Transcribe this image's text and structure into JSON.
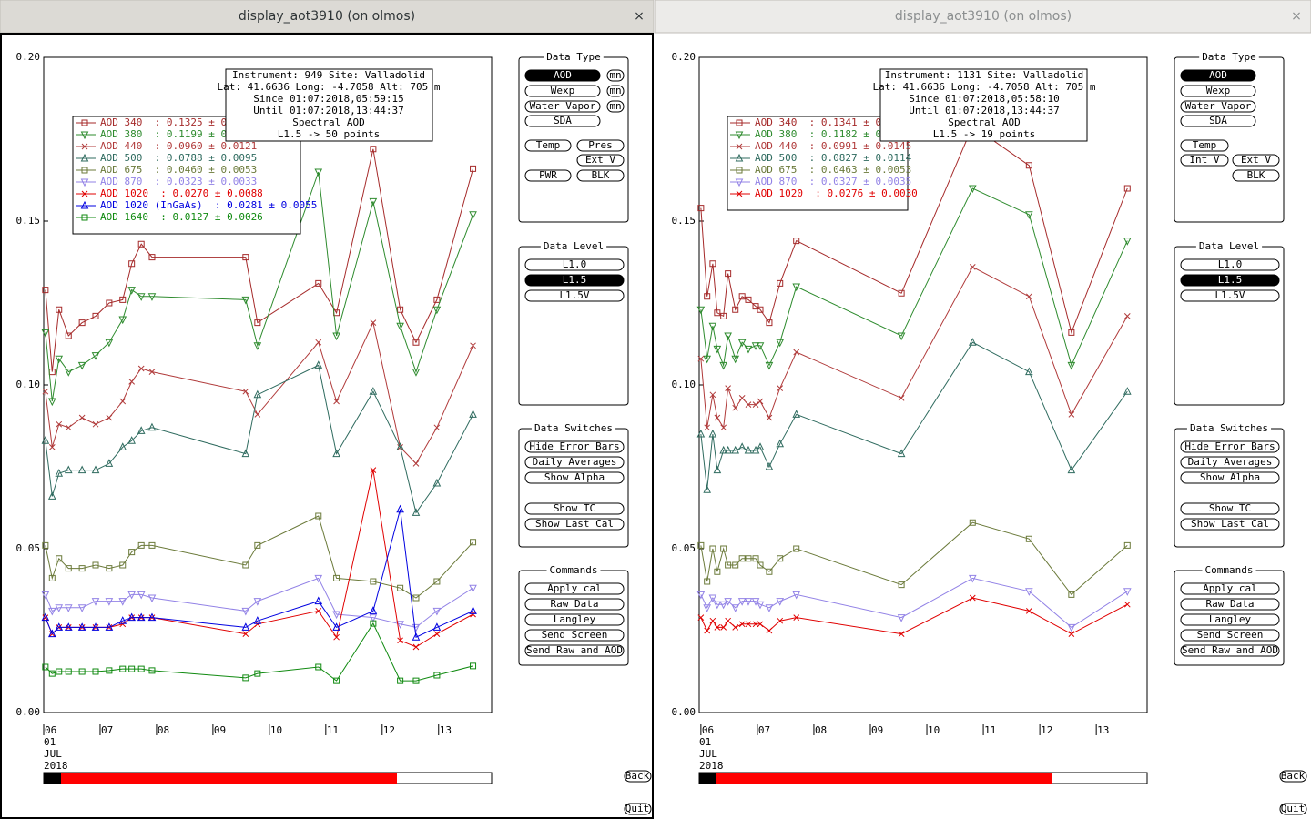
{
  "windows": [
    {
      "title": "display_aot3910 (on olmos)",
      "close": "×",
      "chart": {
        "type": "line",
        "x": [
          6.03,
          6.15,
          6.27,
          6.44,
          6.68,
          6.92,
          7.16,
          7.4,
          7.56,
          7.73,
          7.92,
          9.58,
          9.79,
          10.87,
          11.19,
          11.84,
          12.32,
          12.6,
          12.97,
          13.61
        ],
        "xlim": [
          6,
          13.94
        ],
        "xticks": [
          {
            "value": 6,
            "label": "06"
          },
          {
            "value": 7,
            "label": "07"
          },
          {
            "value": 8,
            "label": "08"
          },
          {
            "value": 9,
            "label": "09"
          },
          {
            "value": 10,
            "label": "10"
          },
          {
            "value": 11,
            "label": "11"
          },
          {
            "value": 12,
            "label": "12"
          },
          {
            "value": 13,
            "label": "13"
          }
        ],
        "date_labels": [
          "01",
          "JUL",
          "2018"
        ],
        "ylim": [
          0,
          0.2
        ],
        "yticks": [
          {
            "value": 0,
            "label": "0.00"
          },
          {
            "value": 0.05,
            "label": "0.05"
          },
          {
            "value": 0.1,
            "label": "0.10"
          },
          {
            "value": 0.15,
            "label": "0.15"
          },
          {
            "value": 0.2,
            "label": "0.20"
          }
        ],
        "info": [
          "Instrument: 949 Site: Valladolid",
          "Lat: 41.6636 Long: -4.7058 Alt: 705 m",
          "Since 01:07:2018,05:59:15",
          "Until 01:07:2018,13:44:37",
          "Spectral AOD",
          "L1.5 -> 50 points"
        ],
        "series": [
          {
            "name": "AOD 340  : 0.1325 ± 0.0",
            "color": "#a52a2a",
            "marker": "square",
            "values": [
              0.129,
              0.104,
              0.123,
              0.115,
              0.119,
              0.121,
              0.125,
              0.126,
              0.137,
              0.143,
              0.139,
              0.139,
              0.119,
              0.131,
              0.122,
              0.172,
              0.123,
              0.113,
              0.126,
              0.166
            ]
          },
          {
            "name": "AOD 380  : 0.1199 ± 0.0",
            "color": "#2e8b2e",
            "marker": "itri",
            "values": [
              0.116,
              0.095,
              0.108,
              0.104,
              0.106,
              0.109,
              0.113,
              0.12,
              0.129,
              0.127,
              0.127,
              0.126,
              0.112,
              0.165,
              0.115,
              0.156,
              0.118,
              0.104,
              0.123,
              0.152
            ]
          },
          {
            "name": "AOD 440  : 0.0960 ± 0.0121",
            "color": "#b03a3a",
            "marker": "x",
            "values": [
              0.098,
              0.081,
              0.088,
              0.087,
              0.09,
              0.088,
              0.09,
              0.095,
              0.101,
              0.105,
              0.104,
              0.098,
              0.091,
              0.113,
              0.095,
              0.119,
              0.081,
              0.076,
              0.087,
              0.112
            ]
          },
          {
            "name": "AOD 500  : 0.0788 ± 0.0095",
            "color": "#2f6b5f",
            "marker": "tri",
            "values": [
              0.083,
              0.066,
              0.073,
              0.074,
              0.074,
              0.074,
              0.076,
              0.081,
              0.083,
              0.086,
              0.087,
              0.079,
              0.097,
              0.106,
              0.079,
              0.098,
              0.081,
              0.061,
              0.07,
              0.091
            ]
          },
          {
            "name": "AOD 675  : 0.0460 ± 0.0053",
            "color": "#6b7a3a",
            "marker": "square",
            "values": [
              0.051,
              0.041,
              0.047,
              0.044,
              0.044,
              0.045,
              0.044,
              0.045,
              0.049,
              0.051,
              0.051,
              0.045,
              0.051,
              0.06,
              0.041,
              0.04,
              0.038,
              0.035,
              0.04,
              0.052
            ]
          },
          {
            "name": "AOD 870  : 0.0323 ± 0.0033",
            "color": "#9282e6",
            "marker": "itri",
            "values": [
              0.036,
              0.031,
              0.032,
              0.032,
              0.032,
              0.034,
              0.034,
              0.034,
              0.036,
              0.036,
              0.035,
              0.031,
              0.034,
              0.041,
              0.03,
              0.029,
              0.027,
              0.026,
              0.031,
              0.038
            ]
          },
          {
            "name": "AOD 1020  : 0.0270 ± 0.0088",
            "color": "#e00000",
            "marker": "x",
            "values": [
              0.029,
              0.024,
              0.026,
              0.026,
              0.026,
              0.026,
              0.026,
              0.027,
              0.029,
              0.029,
              0.029,
              0.024,
              0.027,
              0.031,
              0.023,
              0.074,
              0.022,
              0.02,
              0.024,
              0.03
            ]
          },
          {
            "name": "AOD 1020 (InGaAs)  : 0.0281 ± 0.0055",
            "color": "#0000e0",
            "marker": "tri",
            "values": [
              0.029,
              0.024,
              0.026,
              0.026,
              0.026,
              0.026,
              0.026,
              0.028,
              0.029,
              0.029,
              0.029,
              0.026,
              0.028,
              0.034,
              0.026,
              0.031,
              0.062,
              0.023,
              0.026,
              0.031
            ]
          },
          {
            "name": "AOD 1640  : 0.0127 ± 0.0026",
            "color": "#108a10",
            "marker": "square",
            "values": [
              0.0139,
              0.0119,
              0.0125,
              0.0125,
              0.0125,
              0.0125,
              0.0128,
              0.0133,
              0.0133,
              0.0133,
              0.0128,
              0.0106,
              0.0119,
              0.0139,
              0.0097,
              0.0272,
              0.0097,
              0.0097,
              0.0114,
              0.0142
            ]
          }
        ]
      },
      "panels": [
        {
          "title": "Data Type",
          "buttons": [
            {
              "label": "AOD",
              "selected": true
            },
            {
              "label": "mn"
            },
            {
              "label": "Wexp"
            },
            {
              "label": "mn"
            },
            {
              "label": "Water Vapor"
            },
            {
              "label": "mn"
            },
            {
              "label": "SDA"
            },
            {
              "label": "Temp"
            },
            {
              "label": "Pres"
            },
            {
              "label": "Ext V"
            },
            {
              "label": "PWR"
            },
            {
              "label": "BLK"
            }
          ]
        },
        {
          "title": "Data Level",
          "buttons": [
            {
              "label": "L1.0"
            },
            {
              "label": "L1.5",
              "selected": true
            },
            {
              "label": "L1.5V"
            }
          ]
        },
        {
          "title": "Data Switches",
          "buttons": [
            {
              "label": "Hide Error Bars"
            },
            {
              "label": "Daily Averages"
            },
            {
              "label": "Show Alpha"
            },
            {
              "label": "Show TC"
            },
            {
              "label": "Show Last Cal"
            }
          ]
        },
        {
          "title": "Commands",
          "buttons": [
            {
              "label": "Apply cal"
            },
            {
              "label": "Raw Data"
            },
            {
              "label": "Langley"
            },
            {
              "label": "Send Screen"
            },
            {
              "label": "Send Raw and AOD"
            }
          ]
        }
      ],
      "back": "Back",
      "quit": "Quit"
    },
    {
      "title": "display_aot3910 (on olmos)",
      "close": "×",
      "chart": {
        "type": "line",
        "x": [
          6.0,
          6.11,
          6.21,
          6.29,
          6.4,
          6.48,
          6.61,
          6.73,
          6.84,
          6.97,
          7.05,
          7.21,
          7.4,
          7.69,
          9.55,
          10.81,
          11.81,
          12.56,
          13.55
        ],
        "xlim": [
          5.97,
          13.9
        ],
        "xticks": [
          {
            "value": 6,
            "label": "06"
          },
          {
            "value": 7,
            "label": "07"
          },
          {
            "value": 8,
            "label": "08"
          },
          {
            "value": 9,
            "label": "09"
          },
          {
            "value": 10,
            "label": "10"
          },
          {
            "value": 11,
            "label": "11"
          },
          {
            "value": 12,
            "label": "12"
          },
          {
            "value": 13,
            "label": "13"
          }
        ],
        "date_labels": [
          "01",
          "JUL",
          "2018"
        ],
        "ylim": [
          0,
          0.2
        ],
        "yticks": [
          {
            "value": 0,
            "label": "0.00"
          },
          {
            "value": 0.05,
            "label": "0.05"
          },
          {
            "value": 0.1,
            "label": "0.10"
          },
          {
            "value": 0.15,
            "label": "0.15"
          },
          {
            "value": 0.2,
            "label": "0.20"
          }
        ],
        "info": [
          "Instrument: 1131 Site: Valladolid",
          "Lat: 41.6636 Long: -4.7058 Alt: 705 m",
          "Since 01:07:2018,05:58:10",
          "Until 01:07:2018,13:44:37",
          "Spectral AOD",
          "L1.5 -> 19 points"
        ],
        "series": [
          {
            "name": "AOD 340  : 0.1341 ± 0.0",
            "color": "#a52a2a",
            "marker": "square",
            "values": [
              0.154,
              0.127,
              0.137,
              0.122,
              0.121,
              0.134,
              0.123,
              0.127,
              0.126,
              0.124,
              0.123,
              0.119,
              0.131,
              0.144,
              0.128,
              0.179,
              0.167,
              0.116,
              0.16
            ]
          },
          {
            "name": "AOD 380  : 0.1182 ± 0.0",
            "color": "#2e8b2e",
            "marker": "itri",
            "values": [
              0.123,
              0.108,
              0.118,
              0.111,
              0.106,
              0.115,
              0.108,
              0.113,
              0.111,
              0.112,
              0.112,
              0.106,
              0.113,
              0.13,
              0.115,
              0.16,
              0.152,
              0.106,
              0.144
            ]
          },
          {
            "name": "AOD 440  : 0.0991 ± 0.0145",
            "color": "#b03a3a",
            "marker": "x",
            "values": [
              0.108,
              0.087,
              0.097,
              0.09,
              0.087,
              0.099,
              0.093,
              0.096,
              0.094,
              0.094,
              0.095,
              0.09,
              0.099,
              0.11,
              0.096,
              0.136,
              0.127,
              0.091,
              0.121
            ]
          },
          {
            "name": "AOD 500  : 0.0827 ± 0.0114",
            "color": "#2f6b5f",
            "marker": "tri",
            "values": [
              0.085,
              0.068,
              0.085,
              0.074,
              0.08,
              0.08,
              0.08,
              0.081,
              0.08,
              0.08,
              0.081,
              0.075,
              0.082,
              0.091,
              0.079,
              0.113,
              0.104,
              0.074,
              0.098
            ]
          },
          {
            "name": "AOD 675  : 0.0463 ± 0.0053",
            "color": "#6b7a3a",
            "marker": "square",
            "values": [
              0.051,
              0.04,
              0.05,
              0.043,
              0.05,
              0.045,
              0.045,
              0.047,
              0.047,
              0.047,
              0.045,
              0.043,
              0.047,
              0.05,
              0.039,
              0.058,
              0.053,
              0.036,
              0.051
            ]
          },
          {
            "name": "AOD 870  : 0.0327 ± 0.0035",
            "color": "#9282e6",
            "marker": "itri",
            "values": [
              0.036,
              0.032,
              0.035,
              0.033,
              0.033,
              0.034,
              0.032,
              0.034,
              0.034,
              0.034,
              0.033,
              0.032,
              0.034,
              0.036,
              0.029,
              0.041,
              0.037,
              0.026,
              0.037
            ]
          },
          {
            "name": "AOD 1020  : 0.0276 ± 0.0030",
            "color": "#e00000",
            "marker": "x",
            "values": [
              0.029,
              0.025,
              0.028,
              0.026,
              0.026,
              0.028,
              0.026,
              0.027,
              0.027,
              0.027,
              0.027,
              0.025,
              0.028,
              0.029,
              0.024,
              0.035,
              0.031,
              0.024,
              0.033
            ]
          }
        ]
      },
      "panels": [
        {
          "title": "Data Type",
          "buttons": [
            {
              "label": "AOD",
              "selected": true
            },
            {
              "label": "Wexp"
            },
            {
              "label": "Water Vapor"
            },
            {
              "label": "SDA"
            },
            {
              "label": "Temp"
            },
            {
              "label": "Int V"
            },
            {
              "label": "Ext V"
            },
            {
              "label": "BLK"
            }
          ]
        },
        {
          "title": "Data Level",
          "buttons": [
            {
              "label": "L1.0"
            },
            {
              "label": "L1.5",
              "selected": true
            },
            {
              "label": "L1.5V"
            }
          ]
        },
        {
          "title": "Data Switches",
          "buttons": [
            {
              "label": "Hide Error Bars"
            },
            {
              "label": "Daily Averages"
            },
            {
              "label": "Show Alpha"
            },
            {
              "label": "Show TC"
            },
            {
              "label": "Show Last Cal"
            }
          ]
        },
        {
          "title": "Commands",
          "buttons": [
            {
              "label": "Apply cal"
            },
            {
              "label": "Raw Data"
            },
            {
              "label": "Langley"
            },
            {
              "label": "Send Screen"
            },
            {
              "label": "Send Raw and AOD"
            }
          ]
        }
      ],
      "back": "Back",
      "quit": "Quit"
    }
  ]
}
